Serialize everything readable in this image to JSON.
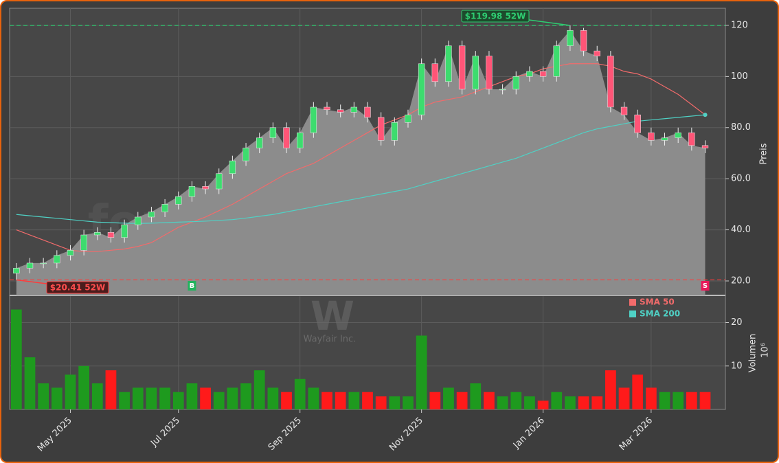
{
  "chart_data": {
    "type": "candlestick",
    "watermark": "forexsignale.trade",
    "logo_letter": "W",
    "company": "Wayfair Inc.",
    "y_label": "Preis",
    "y2_label": "Volumen",
    "y2_unit": "10⁶",
    "categories": [
      null,
      null,
      null,
      null,
      "May 2025",
      null,
      null,
      null,
      null,
      null,
      null,
      null,
      "Jul 2025",
      null,
      null,
      null,
      null,
      null,
      null,
      null,
      null,
      "Sep 2025",
      null,
      null,
      null,
      null,
      null,
      null,
      null,
      null,
      "Nov 2025",
      null,
      null,
      null,
      null,
      null,
      null,
      null,
      null,
      "Jan 2026",
      null,
      null,
      null,
      null,
      null,
      null,
      null,
      "Mar 2026",
      null,
      null,
      null,
      null
    ],
    "open": [
      23,
      25,
      27,
      27,
      30,
      32,
      38,
      39,
      37,
      42,
      45,
      47,
      50,
      53,
      57,
      56,
      62,
      67,
      72,
      76,
      80,
      72,
      78,
      88,
      87,
      86,
      88,
      84,
      75,
      82,
      85,
      105,
      98,
      112,
      95,
      108,
      95,
      95,
      100,
      102,
      100,
      112,
      118,
      110,
      108,
      88,
      85,
      78,
      75,
      76,
      78,
      73
    ],
    "high": [
      27,
      29,
      29,
      32,
      34,
      40,
      41,
      41,
      44,
      47,
      49,
      52,
      55,
      59,
      59,
      64,
      69,
      74,
      78,
      82,
      82,
      80,
      90,
      90,
      89,
      90,
      90,
      86,
      84,
      87,
      107,
      107,
      114,
      114,
      110,
      110,
      97,
      102,
      104,
      104,
      114,
      119.98,
      119,
      112,
      110,
      90,
      87,
      80,
      78,
      80,
      80,
      75
    ],
    "low": [
      20.41,
      23,
      25,
      25,
      28,
      30,
      36,
      35,
      35,
      40,
      43,
      45,
      48,
      51,
      54,
      54,
      60,
      65,
      70,
      74,
      70,
      70,
      76,
      85,
      84,
      84,
      82,
      73,
      73,
      80,
      83,
      96,
      96,
      93,
      93,
      93,
      93,
      93,
      98,
      98,
      98,
      110,
      108,
      106,
      86,
      83,
      76,
      73,
      73,
      74,
      71,
      70
    ],
    "close": [
      25,
      27,
      27,
      30,
      32,
      38,
      39,
      37,
      42,
      45,
      47,
      50,
      53,
      57,
      56,
      62,
      67,
      72,
      76,
      80,
      72,
      78,
      88,
      87,
      86,
      88,
      84,
      75,
      82,
      85,
      105,
      98,
      112,
      95,
      108,
      95,
      95,
      100,
      102,
      100,
      112,
      118,
      110,
      108,
      88,
      85,
      78,
      75,
      76,
      78,
      73,
      72
    ],
    "volume": [
      23,
      12,
      6,
      5,
      8,
      10,
      6,
      9,
      4,
      5,
      5,
      5,
      4,
      6,
      5,
      4,
      5,
      6,
      9,
      5,
      4,
      7,
      5,
      4,
      4,
      4,
      4,
      3,
      3,
      3,
      17,
      4,
      5,
      4,
      6,
      4,
      3,
      4,
      3,
      2,
      4,
      3,
      3,
      3,
      9,
      5,
      8,
      5,
      4,
      4,
      4,
      4
    ],
    "up_color": "#3ddc6e",
    "down_color": "#ff5577",
    "volume_up_color": "#1e9a1e",
    "volume_down_color": "#ff1a1a",
    "area_color": "#8c8c8c",
    "series": [
      {
        "name": "SMA 50",
        "color": "#f26b6b",
        "values": [
          40,
          38,
          36,
          34,
          32,
          31.5,
          31.5,
          32,
          32.5,
          33.5,
          35,
          38,
          41,
          43,
          45,
          47.5,
          50,
          53,
          56,
          59,
          62,
          64,
          66,
          69,
          72,
          75,
          78,
          81,
          83,
          85,
          88,
          90,
          91,
          92,
          94,
          96,
          98,
          100,
          101,
          103,
          104,
          105,
          105,
          105,
          104,
          102,
          101,
          99,
          96,
          93,
          89,
          85
        ]
      },
      {
        "name": "SMA 200",
        "color": "#4fd1c5",
        "values": [
          46,
          45.5,
          45,
          44.5,
          44,
          43.5,
          43,
          42.8,
          42.6,
          42.5,
          42.6,
          42.8,
          43,
          43.2,
          43.4,
          43.7,
          44,
          44.6,
          45.3,
          46,
          47,
          48,
          49,
          50,
          51,
          52,
          53,
          54,
          55,
          56,
          57.5,
          59,
          60.5,
          62,
          63.5,
          65,
          66.5,
          68,
          70,
          72,
          74,
          76,
          78,
          79.5,
          80.5,
          81.5,
          82.5,
          83,
          83.5,
          84,
          84.5,
          85
        ]
      }
    ],
    "high_52w": {
      "value": 119.98,
      "label": "$119.98 52W"
    },
    "low_52w": {
      "value": 20.41,
      "label": "$20.41 52W"
    },
    "signals": [
      {
        "label": "B",
        "index": 13,
        "color": "#22b35e"
      },
      {
        "label": "S",
        "index": 51,
        "color": "#e8195a"
      }
    ],
    "ylim": [
      14.35,
      126.7
    ],
    "yticks": [
      {
        "value": 20,
        "label": "20.0"
      },
      {
        "value": 40,
        "label": "40.0"
      },
      {
        "value": 60,
        "label": "60.0"
      },
      {
        "value": 80,
        "label": "80.0"
      },
      100,
      120
    ],
    "y2lim": [
      0,
      26.25
    ],
    "y2ticks": [
      10,
      20
    ],
    "grid": true
  }
}
